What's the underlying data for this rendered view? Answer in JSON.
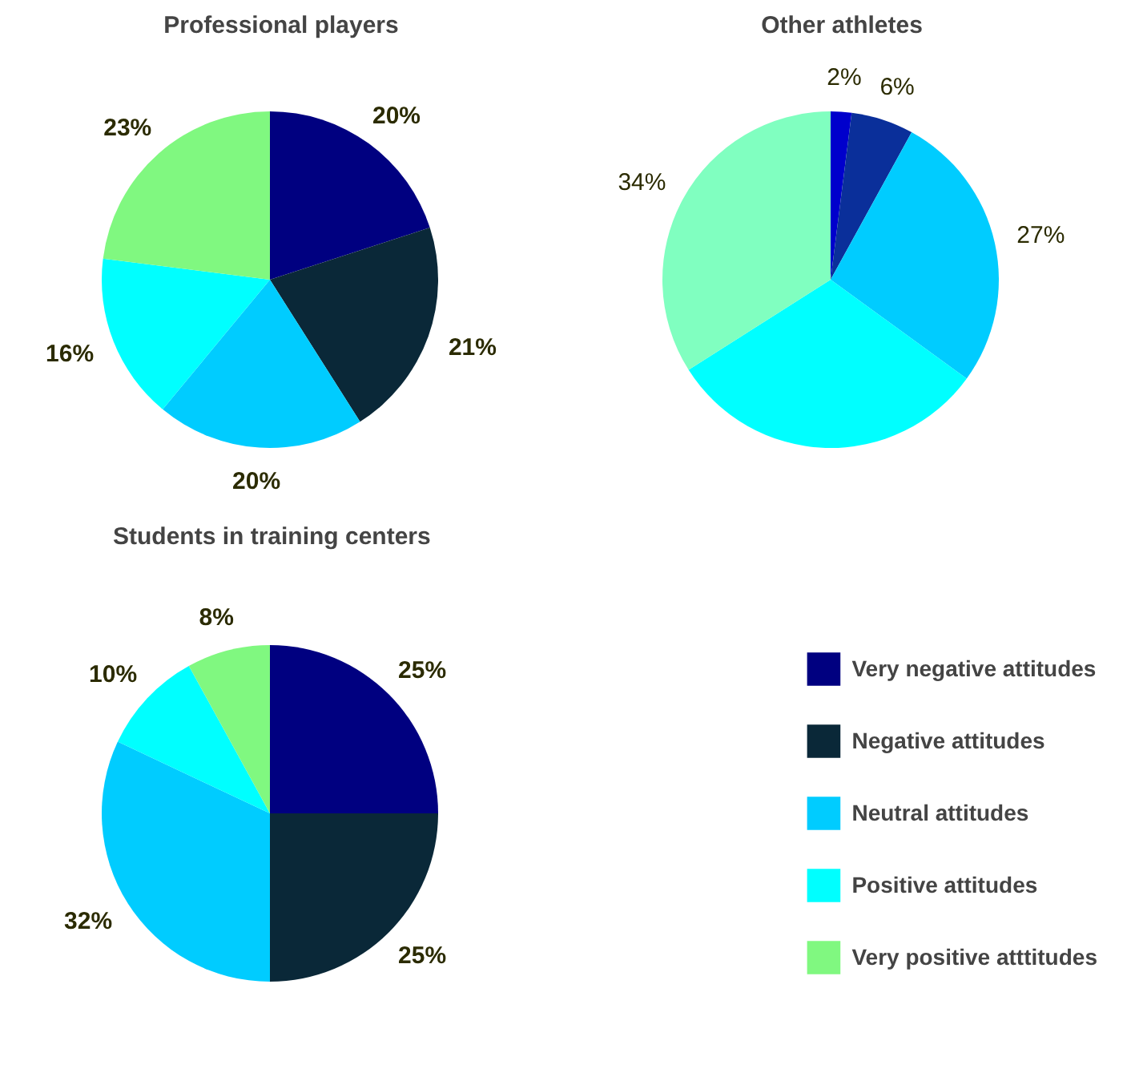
{
  "chart_data": [
    {
      "type": "pie",
      "title": "Professional players",
      "categories": [
        null,
        null,
        null,
        null,
        null
      ],
      "values": [
        20,
        21,
        20,
        16,
        23
      ],
      "colors": [
        "#000080",
        "#0a2838",
        "#00ccff",
        "#00ffff",
        "#80f880"
      ],
      "value_labels": [
        "20%",
        "21%",
        "20%",
        "16%",
        "23%"
      ]
    },
    {
      "type": "pie",
      "title": "Other athletes",
      "categories": [
        null,
        null,
        null,
        null,
        null
      ],
      "values": [
        2,
        6,
        27,
        31,
        34
      ],
      "colors": [
        "#0000cc",
        "#0a2f9a",
        "#00ccff",
        "#00ffff",
        "#80ffc0"
      ],
      "value_labels": [
        "2%",
        "6%",
        "27%",
        null,
        "34%"
      ]
    },
    {
      "type": "pie",
      "title": "Students in training centers",
      "categories": [
        "Very negative attitudes",
        "Negative attitudes",
        "Neutral attitudes",
        "Positive attitudes",
        "Very positive atttitudes"
      ],
      "values": [
        25,
        25,
        32,
        10,
        8
      ],
      "colors": [
        "#000080",
        "#0a2838",
        "#00ccff",
        "#00ffff",
        "#80f880"
      ],
      "value_labels": [
        "25%",
        "25%",
        "32%",
        "10%",
        "8%"
      ],
      "legend": "right"
    }
  ]
}
